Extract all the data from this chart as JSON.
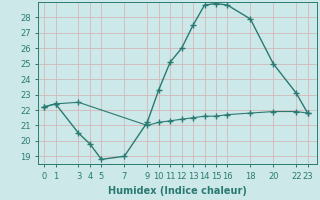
{
  "title": "",
  "xlabel": "Humidex (Indice chaleur)",
  "ylabel": "",
  "background_color": "#cce8e8",
  "grid_color": "#b8d8d8",
  "line_color": "#2a7a72",
  "line1_x": [
    0,
    1,
    3,
    4,
    5,
    7,
    9,
    10,
    11,
    12,
    13,
    14,
    15,
    16,
    18,
    20,
    22,
    23
  ],
  "line1_y": [
    22.2,
    22.4,
    20.5,
    19.8,
    18.8,
    19.0,
    21.2,
    23.3,
    25.1,
    26.0,
    27.5,
    28.8,
    28.9,
    28.8,
    27.9,
    25.0,
    23.1,
    21.8
  ],
  "line2_x": [
    0,
    1,
    3,
    9,
    10,
    11,
    12,
    13,
    14,
    15,
    16,
    18,
    20,
    22,
    23
  ],
  "line2_y": [
    22.2,
    22.4,
    22.5,
    21.0,
    21.2,
    21.3,
    21.4,
    21.5,
    21.6,
    21.6,
    21.7,
    21.8,
    21.9,
    21.9,
    21.8
  ],
  "xticks": [
    0,
    1,
    3,
    4,
    5,
    7,
    9,
    10,
    11,
    12,
    13,
    14,
    15,
    16,
    18,
    20,
    22,
    23
  ],
  "yticks": [
    19,
    20,
    21,
    22,
    23,
    24,
    25,
    26,
    27,
    28
  ],
  "xlim": [
    -0.5,
    23.8
  ],
  "ylim": [
    18.5,
    29.0
  ]
}
